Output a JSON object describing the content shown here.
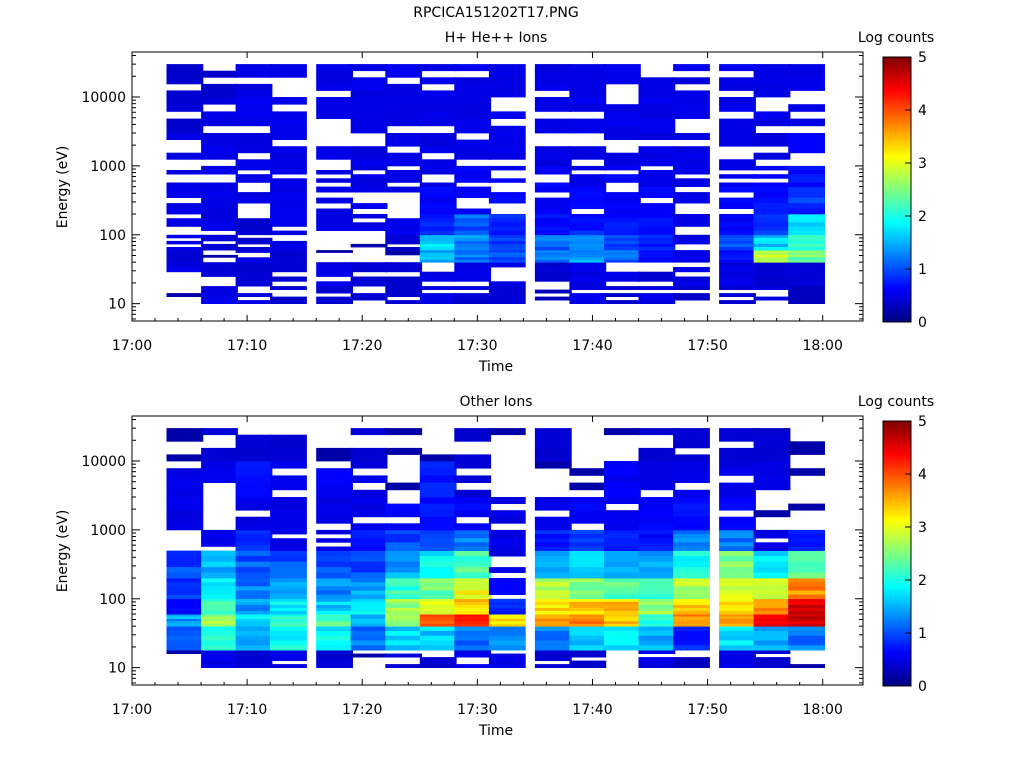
{
  "file_title": "RPCICA151202T17.PNG",
  "colors": {
    "axis": "#000000",
    "background": "#ffffff",
    "colormap": "jet"
  },
  "colorbar": {
    "label": "Log counts",
    "ticks": [
      "0",
      "1",
      "2",
      "3",
      "4",
      "5"
    ],
    "range": [
      0,
      5
    ]
  },
  "chart_data": [
    {
      "type": "heatmap",
      "title": "H+ He++ Ions",
      "xlabel": "Time",
      "ylabel": "Energy (eV)",
      "x_ticks": [
        "17:00",
        "17:10",
        "17:20",
        "17:30",
        "17:40",
        "17:50",
        "18:00"
      ],
      "y_ticks": [
        "10",
        "100",
        "1000",
        "10000"
      ],
      "y_scale": "log",
      "time_bins": [
        "17:03",
        "17:06",
        "17:09",
        "17:12",
        "17:16",
        "17:19",
        "17:22",
        "17:25",
        "17:28",
        "17:31",
        "17:35",
        "17:38",
        "17:41",
        "17:44",
        "17:47",
        "17:51",
        "17:54",
        "17:57"
      ],
      "energy_bands_eV": [
        10,
        18,
        40,
        60,
        100,
        200,
        500,
        1000,
        3000,
        10000,
        30000
      ],
      "log_counts": [
        [
          0.0,
          0.3,
          0.3,
          0.2,
          0.2,
          0.2,
          0.2,
          0.3,
          0.2,
          0.2,
          0.1,
          0.3,
          0.2,
          0.3,
          0.2,
          0.2,
          0.3,
          0.1
        ],
        [
          0.3,
          0.2,
          0.2,
          0.2,
          0.3,
          0.2,
          0.2,
          0.3,
          0.3,
          0.3,
          0.2,
          0.3,
          0.3,
          0.2,
          0.3,
          0.3,
          0.2,
          0.2
        ],
        [
          0.2,
          0.0,
          0.3,
          0.2,
          0.0,
          0.0,
          0.0,
          1.3,
          1.0,
          0.9,
          1.1,
          1.2,
          1.0,
          0.5,
          0.3,
          0.5,
          2.8,
          2.3
        ],
        [
          0.3,
          0.2,
          0.2,
          0.3,
          0.0,
          0.0,
          0.2,
          1.5,
          1.2,
          0.7,
          1.0,
          1.0,
          0.8,
          0.6,
          0.3,
          0.8,
          1.5,
          2.0
        ],
        [
          0.3,
          0.3,
          0.2,
          0.3,
          0.3,
          0.3,
          0.3,
          0.6,
          0.9,
          0.6,
          0.5,
          0.6,
          0.5,
          0.5,
          0.3,
          0.4,
          0.8,
          1.6
        ],
        [
          0.3,
          0.3,
          0.3,
          0.3,
          0.3,
          0.3,
          0.3,
          0.4,
          0.4,
          0.4,
          0.4,
          0.4,
          0.4,
          0.4,
          0.3,
          0.4,
          0.5,
          0.7
        ],
        [
          0.3,
          0.3,
          0.3,
          0.3,
          0.3,
          0.3,
          0.3,
          0.3,
          0.4,
          0.4,
          0.4,
          0.3,
          0.4,
          0.3,
          0.3,
          0.3,
          0.4,
          0.5
        ],
        [
          0.3,
          0.3,
          0.3,
          0.3,
          0.3,
          0.3,
          0.3,
          0.3,
          0.3,
          0.3,
          0.3,
          0.3,
          0.3,
          0.3,
          0.3,
          0.3,
          0.3,
          0.4
        ],
        [
          0.2,
          0.3,
          0.3,
          0.3,
          0.3,
          0.3,
          0.3,
          0.3,
          0.3,
          0.3,
          0.3,
          0.3,
          0.3,
          0.3,
          0.3,
          0.3,
          0.3,
          0.3
        ],
        [
          0.2,
          0.2,
          0.3,
          0.3,
          0.3,
          0.3,
          0.3,
          0.3,
          0.3,
          0.3,
          0.3,
          0.3,
          0.3,
          0.3,
          0.3,
          0.3,
          0.3,
          0.3
        ]
      ]
    },
    {
      "type": "heatmap",
      "title": "Other Ions",
      "xlabel": "Time",
      "ylabel": "Energy (eV)",
      "x_ticks": [
        "17:00",
        "17:10",
        "17:20",
        "17:30",
        "17:40",
        "17:50",
        "18:00"
      ],
      "y_ticks": [
        "10",
        "100",
        "1000",
        "10000"
      ],
      "y_scale": "log",
      "time_bins": [
        "17:03",
        "17:06",
        "17:09",
        "17:12",
        "17:16",
        "17:19",
        "17:22",
        "17:25",
        "17:28",
        "17:31",
        "17:35",
        "17:38",
        "17:41",
        "17:44",
        "17:47",
        "17:51",
        "17:54",
        "17:57"
      ],
      "energy_bands_eV": [
        10,
        18,
        40,
        60,
        100,
        200,
        500,
        1000,
        3000,
        10000,
        30000
      ],
      "log_counts": [
        [
          0.0,
          0.3,
          0.2,
          0.3,
          0.2,
          0.0,
          0.2,
          0.2,
          0.3,
          0.3,
          0.2,
          0.2,
          0.0,
          0.3,
          0.1,
          0.3,
          0.2,
          0.0
        ],
        [
          1.0,
          1.8,
          1.2,
          1.8,
          1.7,
          1.0,
          1.6,
          1.5,
          1.0,
          1.1,
          1.0,
          1.5,
          1.7,
          1.4,
          0.6,
          1.6,
          1.3,
          1.1
        ],
        [
          1.3,
          2.5,
          1.6,
          2.0,
          2.2,
          1.5,
          2.6,
          4.0,
          4.1,
          3.2,
          3.6,
          3.7,
          3.4,
          1.9,
          3.6,
          3.6,
          4.5,
          4.6
        ],
        [
          0.5,
          2.0,
          1.2,
          1.7,
          1.5,
          1.6,
          2.5,
          3.0,
          3.3,
          0.6,
          3.2,
          3.3,
          3.3,
          2.5,
          3.2,
          3.2,
          3.6,
          4.6
        ],
        [
          0.7,
          1.6,
          1.1,
          1.3,
          1.1,
          1.2,
          2.0,
          2.3,
          3.0,
          0.4,
          2.6,
          2.4,
          2.2,
          2.1,
          2.6,
          2.8,
          2.7,
          3.6
        ],
        [
          0.8,
          1.4,
          0.9,
          0.9,
          0.9,
          0.8,
          1.3,
          1.7,
          2.1,
          0.3,
          1.3,
          1.6,
          1.5,
          1.2,
          1.8,
          2.3,
          1.7,
          2.2
        ],
        [
          0.0,
          0.3,
          0.6,
          0.3,
          0.3,
          0.5,
          0.8,
          0.9,
          1.1,
          0.3,
          0.6,
          0.8,
          0.6,
          0.5,
          1.1,
          1.0,
          0.3,
          0.5
        ],
        [
          0.3,
          0.0,
          0.3,
          0.3,
          0.3,
          0.3,
          0.4,
          0.5,
          0.4,
          0.3,
          0.3,
          0.4,
          0.3,
          0.4,
          0.5,
          0.4,
          0.0,
          0.0
        ],
        [
          0.3,
          0.3,
          0.5,
          0.3,
          0.4,
          0.3,
          0.0,
          0.6,
          0.2,
          0.0,
          0.0,
          0.0,
          0.4,
          0.3,
          0.3,
          0.3,
          0.3,
          0.0
        ],
        [
          0.0,
          0.2,
          0.2,
          0.2,
          0.0,
          0.2,
          0.0,
          0.0,
          0.2,
          0.0,
          0.2,
          0.0,
          0.0,
          0.2,
          0.2,
          0.2,
          0.2,
          0.0
        ]
      ]
    }
  ]
}
